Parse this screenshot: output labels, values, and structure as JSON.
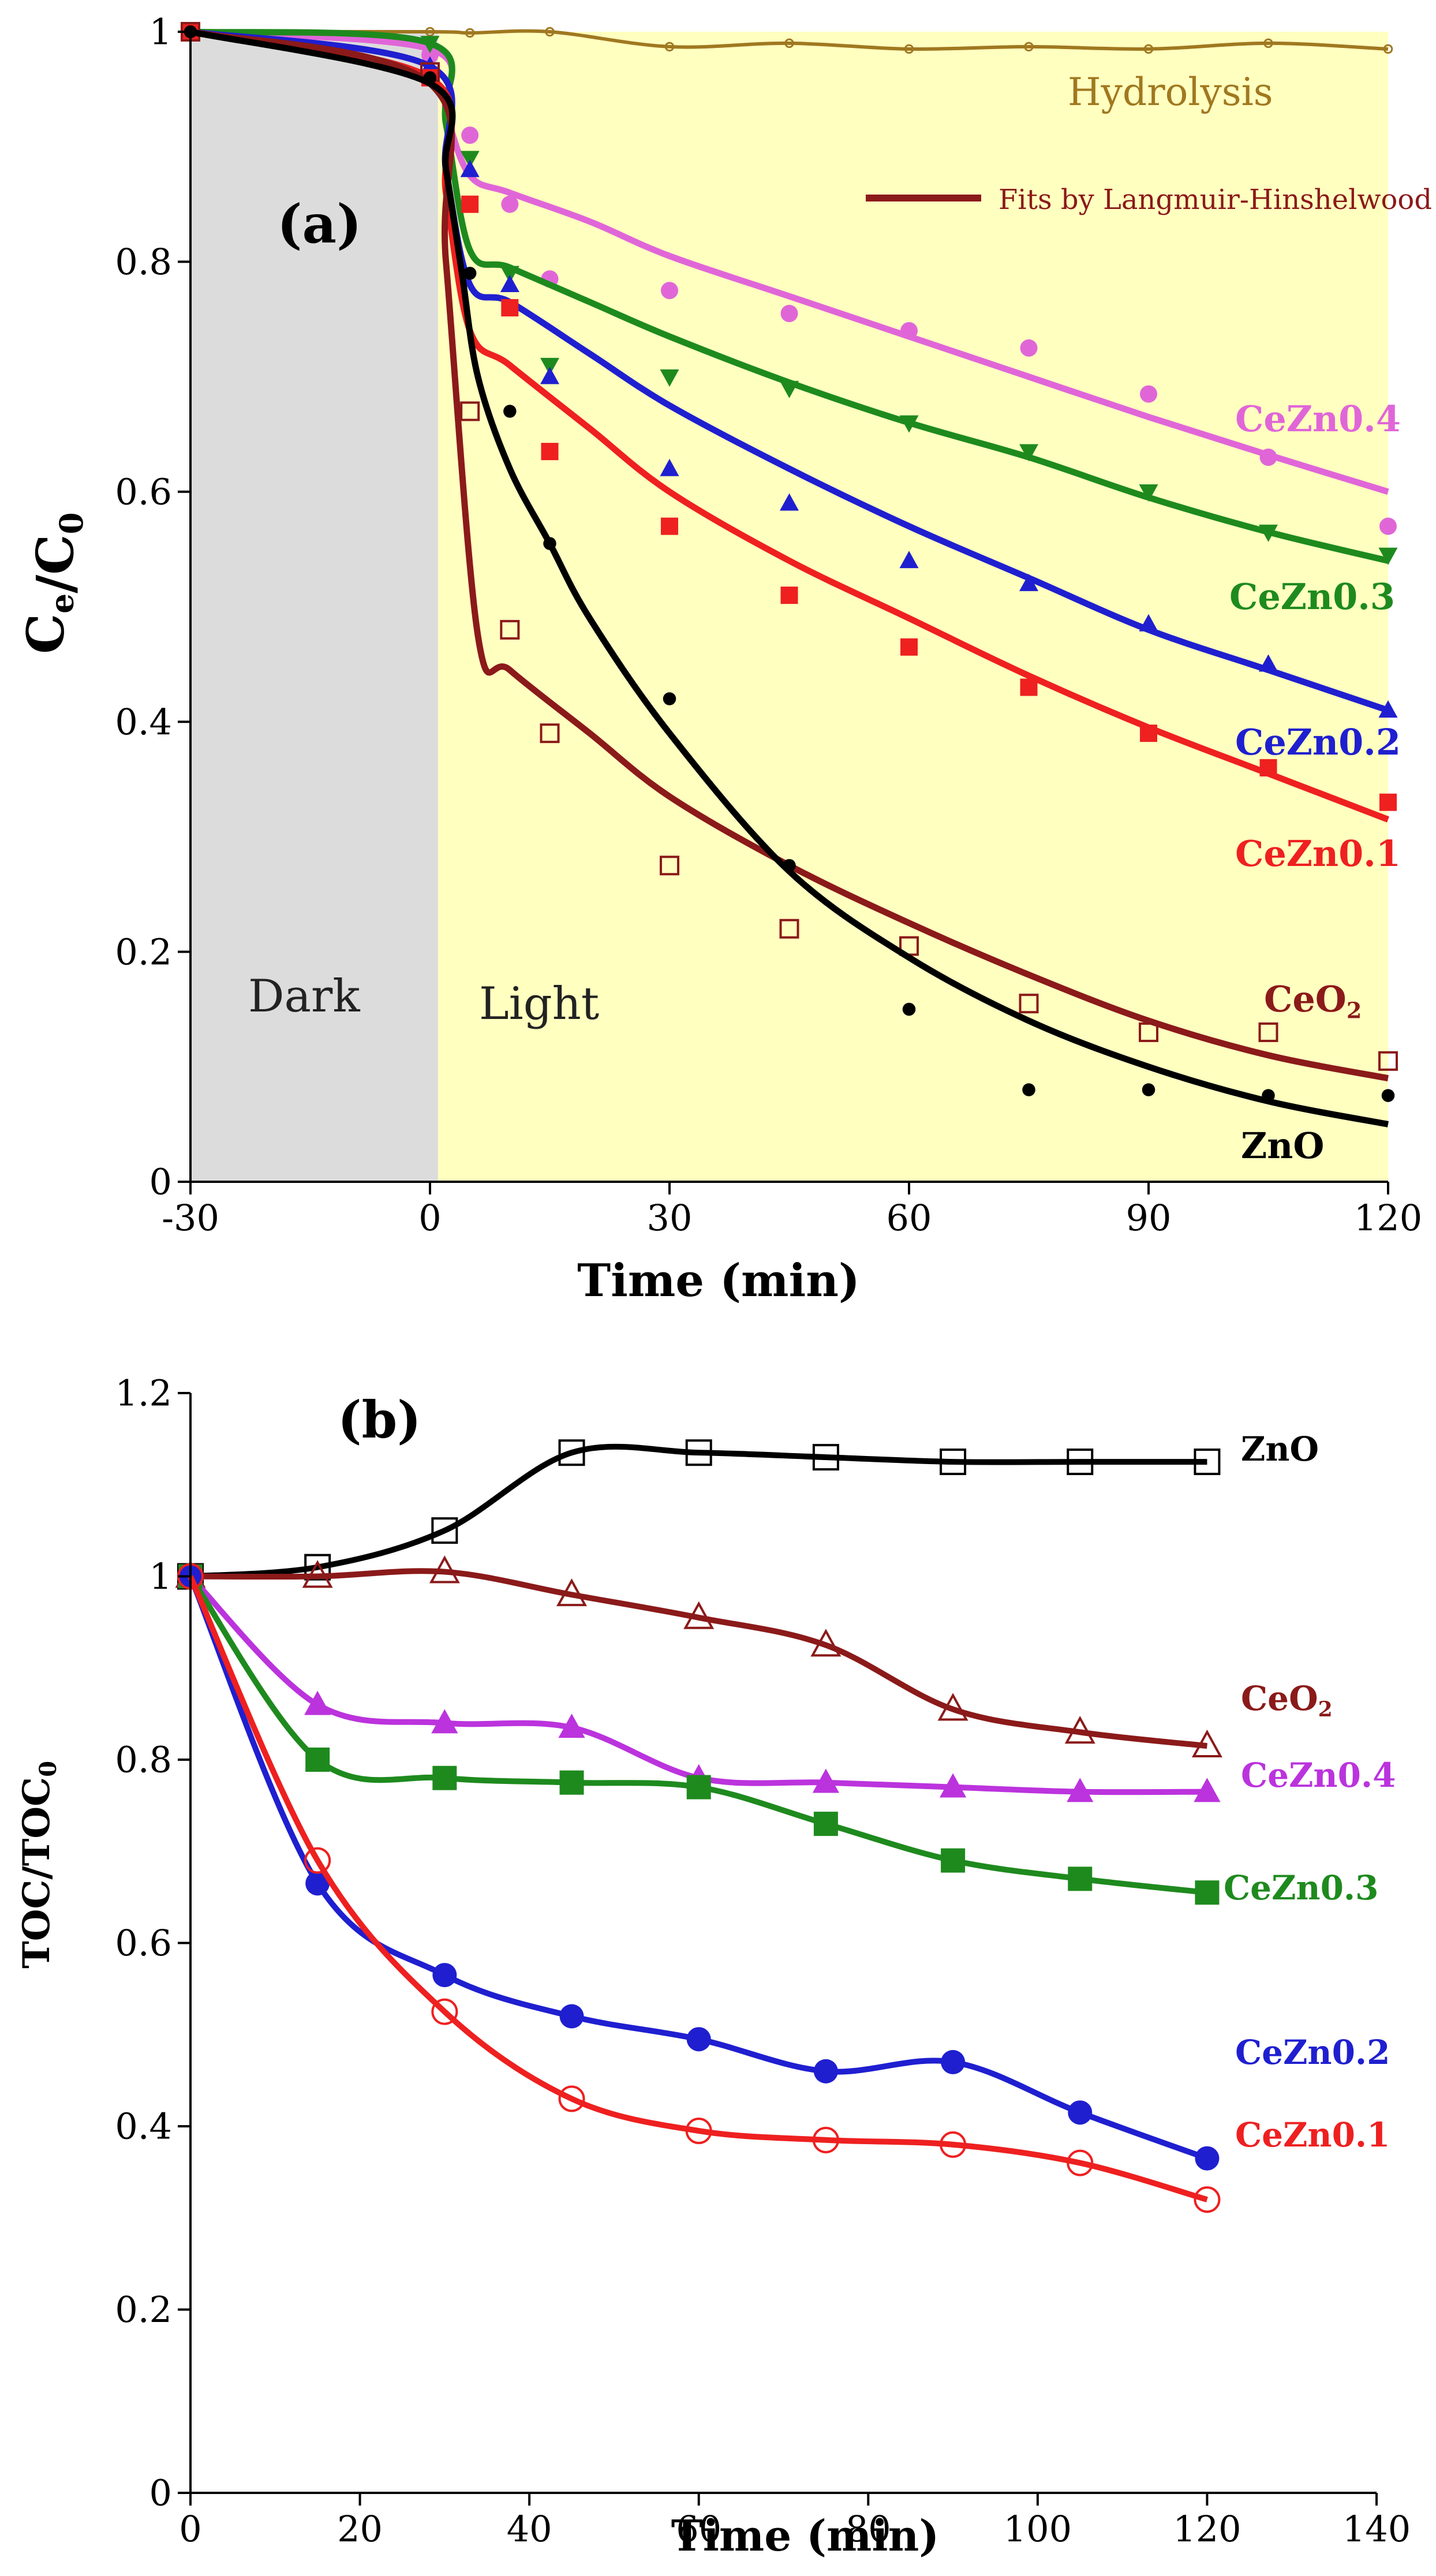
{
  "chart_data": [
    {
      "panel_label": "(a)",
      "type": "scatter",
      "xlabel": "Time (min)",
      "ylabel": "C_e/C_0",
      "xlim": [
        -30,
        120
      ],
      "ylim": [
        0,
        1
      ],
      "x_ticks": [
        "-30",
        "0",
        "30",
        "60",
        "90",
        "120"
      ],
      "y_ticks": [
        "0",
        "0.2",
        "0.4",
        "0.6",
        "0.8",
        "1"
      ],
      "regions": [
        {
          "label": "Dark",
          "x_range": [
            -30,
            1
          ],
          "color": "#dcdcdc"
        },
        {
          "label": "Light",
          "x_range": [
            1,
            120
          ],
          "color": "#ffffc0"
        }
      ],
      "legend": {
        "label": "Fits by Langmuir-Hinshelwood equation",
        "color": "#8b1a1a",
        "position": "top-right"
      },
      "hydrolysis_label": "Hydrolysis",
      "series": [
        {
          "name": "Hydrolysis",
          "label_color": "#a07820",
          "color": "#a07820",
          "marker": "small-circle",
          "x": [
            -30,
            0,
            5,
            15,
            30,
            45,
            60,
            75,
            90,
            105,
            120
          ],
          "y": [
            1.0,
            1.0,
            0.999,
            1.0,
            0.987,
            0.99,
            0.985,
            0.987,
            0.985,
            0.99,
            0.985
          ],
          "fit": {
            "x": [
              -30,
              0,
              5,
              15,
              30,
              45,
              60,
              75,
              90,
              105,
              120
            ],
            "y": [
              1.0,
              1.0,
              0.999,
              1.0,
              0.987,
              0.99,
              0.985,
              0.987,
              0.985,
              0.99,
              0.985
            ]
          }
        },
        {
          "name": "CeZn0.4",
          "label_color": "#e066d8",
          "color": "#e066d8",
          "marker": "circle",
          "x": [
            -30,
            0,
            5,
            10,
            15,
            30,
            45,
            60,
            75,
            90,
            105,
            120
          ],
          "y": [
            1.0,
            0.98,
            0.91,
            0.85,
            0.785,
            0.775,
            0.755,
            0.74,
            0.725,
            0.685,
            0.63,
            0.57
          ],
          "fit": {
            "x": [
              -30,
              0,
              2,
              5,
              10,
              20,
              30,
              45,
              60,
              75,
              90,
              105,
              120
            ],
            "y": [
              1.0,
              0.985,
              0.93,
              0.875,
              0.86,
              0.835,
              0.805,
              0.77,
              0.735,
              0.7,
              0.665,
              0.632,
              0.6
            ]
          }
        },
        {
          "name": "CeZn0.3",
          "label_color": "#1e8a1e",
          "color": "#1e8a1e",
          "marker": "triangle-down",
          "x": [
            -30,
            0,
            5,
            10,
            15,
            30,
            45,
            60,
            75,
            90,
            105,
            120
          ],
          "y": [
            1.0,
            0.99,
            0.89,
            0.79,
            0.71,
            0.7,
            0.69,
            0.66,
            0.635,
            0.6,
            0.565,
            0.545
          ],
          "fit": {
            "x": [
              -30,
              0,
              2,
              5,
              10,
              20,
              30,
              45,
              60,
              75,
              90,
              105,
              120
            ],
            "y": [
              1.0,
              0.99,
              0.92,
              0.81,
              0.795,
              0.765,
              0.735,
              0.695,
              0.66,
              0.63,
              0.595,
              0.565,
              0.54
            ]
          }
        },
        {
          "name": "CeZn0.2",
          "label_color": "#1f1fd0",
          "color": "#1f1fd0",
          "marker": "triangle-up",
          "x": [
            -30,
            0,
            5,
            10,
            15,
            30,
            45,
            60,
            75,
            90,
            105,
            120
          ],
          "y": [
            1.0,
            0.97,
            0.88,
            0.78,
            0.7,
            0.62,
            0.59,
            0.54,
            0.52,
            0.485,
            0.45,
            0.41
          ],
          "fit": {
            "x": [
              -30,
              0,
              2,
              5,
              10,
              20,
              30,
              45,
              60,
              75,
              90,
              105,
              120
            ],
            "y": [
              1.0,
              0.97,
              0.88,
              0.78,
              0.765,
              0.72,
              0.675,
              0.62,
              0.57,
              0.525,
              0.48,
              0.445,
              0.41
            ]
          }
        },
        {
          "name": "CeZn0.1",
          "label_color": "#ee2020",
          "color": "#ee2020",
          "marker": "square",
          "x": [
            -30,
            0,
            5,
            10,
            15,
            30,
            45,
            60,
            75,
            90,
            105,
            120
          ],
          "y": [
            1.0,
            0.96,
            0.85,
            0.76,
            0.635,
            0.57,
            0.51,
            0.465,
            0.43,
            0.39,
            0.36,
            0.33
          ],
          "fit": {
            "x": [
              -30,
              0,
              2,
              5,
              10,
              20,
              30,
              45,
              60,
              75,
              90,
              105,
              120
            ],
            "y": [
              1.0,
              0.96,
              0.86,
              0.74,
              0.71,
              0.655,
              0.6,
              0.54,
              0.49,
              0.44,
              0.395,
              0.355,
              0.315
            ]
          }
        },
        {
          "name": "CeO2",
          "label_color": "#8b1a1a",
          "color": "#8b1a1a",
          "marker": "open-square",
          "x": [
            -30,
            0,
            5,
            10,
            15,
            30,
            45,
            60,
            75,
            90,
            105,
            120
          ],
          "y": [
            1.0,
            0.965,
            0.67,
            0.48,
            0.39,
            0.275,
            0.22,
            0.205,
            0.155,
            0.13,
            0.13,
            0.105
          ],
          "fit": {
            "x": [
              -30,
              0,
              2,
              6,
              10,
              20,
              30,
              45,
              60,
              75,
              90,
              105,
              120
            ],
            "y": [
              1.0,
              0.955,
              0.8,
              0.475,
              0.445,
              0.39,
              0.335,
              0.275,
              0.225,
              0.18,
              0.14,
              0.11,
              0.09
            ]
          }
        },
        {
          "name": "ZnO",
          "label_color": "#000000",
          "color": "#000000",
          "marker": "small-dot",
          "x": [
            -30,
            0,
            5,
            10,
            15,
            30,
            45,
            60,
            75,
            90,
            105,
            120
          ],
          "y": [
            1.0,
            0.96,
            0.79,
            0.67,
            0.555,
            0.42,
            0.275,
            0.15,
            0.08,
            0.08,
            0.075,
            0.075
          ],
          "fit": {
            "x": [
              -30,
              0,
              2,
              4,
              6,
              10,
              15,
              20,
              30,
              45,
              60,
              75,
              90,
              105,
              120
            ],
            "y": [
              1.0,
              0.955,
              0.88,
              0.79,
              0.7,
              0.62,
              0.555,
              0.49,
              0.39,
              0.27,
              0.195,
              0.14,
              0.1,
              0.07,
              0.05
            ]
          }
        }
      ]
    },
    {
      "panel_label": "(b)",
      "type": "line",
      "xlabel": "Time (min)",
      "ylabel": "TOC/TOC_0",
      "xlim": [
        0,
        140
      ],
      "ylim": [
        0,
        1.2
      ],
      "x_ticks": [
        "0",
        "20",
        "40",
        "60",
        "80",
        "100",
        "120",
        "140"
      ],
      "y_ticks": [
        "0",
        "0.2",
        "0.4",
        "0.6",
        "0.8",
        "1",
        "1.2"
      ],
      "series": [
        {
          "name": "ZnO",
          "label_color": "#000000",
          "color": "#000000",
          "marker": "open-square",
          "x": [
            0,
            15,
            30,
            45,
            60,
            75,
            90,
            105,
            120
          ],
          "y": [
            1.0,
            1.01,
            1.05,
            1.135,
            1.135,
            1.13,
            1.125,
            1.125,
            1.125
          ]
        },
        {
          "name": "CeO2",
          "label_color": "#8b1a1a",
          "color": "#8b1a1a",
          "marker": "open-triangle",
          "x": [
            0,
            15,
            30,
            45,
            60,
            75,
            90,
            105,
            120
          ],
          "y": [
            1.0,
            1.0,
            1.005,
            0.98,
            0.955,
            0.925,
            0.855,
            0.83,
            0.815
          ]
        },
        {
          "name": "CeZn0.4",
          "label_color": "#bb33dd",
          "color": "#bb33dd",
          "marker": "triangle-up",
          "x": [
            0,
            15,
            30,
            45,
            60,
            75,
            90,
            105,
            120
          ],
          "y": [
            1.0,
            0.86,
            0.84,
            0.835,
            0.78,
            0.775,
            0.77,
            0.765,
            0.765
          ]
        },
        {
          "name": "CeZn0.3",
          "label_color": "#1e8a1e",
          "color": "#1e8a1e",
          "marker": "square",
          "x": [
            0,
            15,
            30,
            45,
            60,
            75,
            90,
            105,
            120
          ],
          "y": [
            1.0,
            0.8,
            0.78,
            0.775,
            0.77,
            0.73,
            0.69,
            0.67,
            0.655
          ]
        },
        {
          "name": "CeZn0.2",
          "label_color": "#1f1fd0",
          "color": "#1f1fd0",
          "marker": "circle",
          "x": [
            0,
            15,
            30,
            45,
            60,
            75,
            90,
            105,
            120
          ],
          "y": [
            1.0,
            0.665,
            0.565,
            0.52,
            0.495,
            0.46,
            0.47,
            0.415,
            0.365
          ]
        },
        {
          "name": "CeZn0.1",
          "label_color": "#ee2020",
          "color": "#ee2020",
          "marker": "open-circle",
          "x": [
            0,
            15,
            30,
            45,
            60,
            75,
            90,
            105,
            120
          ],
          "y": [
            1.0,
            0.69,
            0.525,
            0.43,
            0.395,
            0.385,
            0.38,
            0.36,
            0.32
          ]
        }
      ]
    }
  ]
}
